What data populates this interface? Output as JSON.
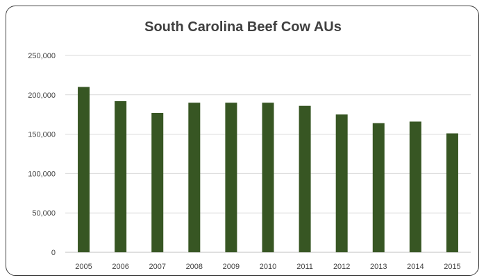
{
  "chart_data": {
    "type": "bar",
    "title": "South Carolina Beef Cow AUs",
    "xlabel": "",
    "ylabel": "",
    "categories": [
      "2005",
      "2006",
      "2007",
      "2008",
      "2009",
      "2010",
      "2011",
      "2012",
      "2013",
      "2014",
      "2015"
    ],
    "values": [
      210000,
      192000,
      177000,
      190000,
      190000,
      190000,
      186000,
      175000,
      164000,
      166000,
      151000
    ],
    "ylim": [
      0,
      250000
    ],
    "yticks": [
      0,
      50000,
      100000,
      150000,
      200000,
      250000
    ],
    "ytick_labels": [
      "0",
      "50,000",
      "100,000",
      "150,000",
      "200,000",
      "250,000"
    ],
    "grid": true,
    "legend": "none",
    "colors": {
      "bar": "#375623",
      "grid": "#d9d9d9",
      "axis": "#bfbfbf",
      "text": "#404040",
      "border": "#3f3f3f"
    }
  }
}
